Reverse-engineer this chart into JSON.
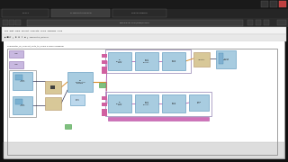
{
  "bg_color": "#111111",
  "canvas_bg": "#f0f0f0",
  "canvas_inner": "#ffffff",
  "browser_chrome": "#222222",
  "tab_active": "#3c3c3c",
  "tab_inactive": "#2a2a2a",
  "nav_bar": "#2a2a2a",
  "addr_bar": "#3d3d3d",
  "lv_toolbar": "#eeeeee",
  "lv_toolbar2": "#e0e0e0",
  "block_blue": "#a8cce0",
  "block_blue_light": "#bcd8ec",
  "block_tan": "#d8c898",
  "block_purple_light": "#c8b8e0",
  "block_green": "#80c080",
  "wire_dark": "#303050",
  "wire_orange": "#d89030",
  "wire_purple": "#b060b0",
  "wire_green": "#50a050",
  "pink_bar": "#d060a0",
  "loop_edge": "#808090",
  "text_dark": "#202020",
  "text_light": "#cccccc"
}
